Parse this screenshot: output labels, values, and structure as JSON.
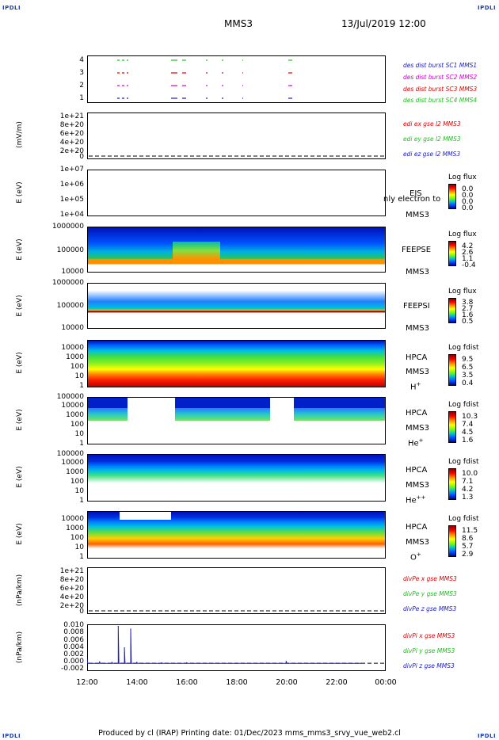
{
  "corners": {
    "tl": "IPDLI",
    "tr": "IPDLI",
    "bl": "IPDLI",
    "br": "IPDLI"
  },
  "header": {
    "title": "MMS3",
    "datetime": "13/Jul/2019 12:00"
  },
  "panels": {
    "burst": {
      "yticks": [
        "4",
        "3",
        "2",
        "1"
      ],
      "legend": [
        "des dist burst SC1 MMS1",
        "des dist burst SC2 MMS2",
        "des dist burst SC3 MMS3",
        "des dist burst SC4 MMS4"
      ],
      "colors": [
        "#1c1cc8",
        "#d400d4",
        "#e00000",
        "#20c020"
      ]
    },
    "edi": {
      "ylabel": "(mV/m)",
      "yticks": [
        "1e+21",
        "8e+20",
        "6e+20",
        "4e+20",
        "2e+20",
        "0"
      ],
      "legend": [
        "edi ex gse l2 MMS3",
        "edi ey gse l2 MMS3",
        "edi ez gse l2 MMS3"
      ],
      "colors": [
        "#e00000",
        "#20c020",
        "#1c1cc8"
      ]
    },
    "eis": {
      "ylabel": "E (eV)",
      "yticks": [
        "1e+07",
        "1e+06",
        "1e+05",
        "1e+04"
      ],
      "name": "EIS",
      "sc": "MMS3",
      "overlay": "nly electron to",
      "cbtitle": "Log flux",
      "cbvals": [
        "0.0",
        "0.0",
        "0.0",
        "0.0"
      ]
    },
    "feepse": {
      "ylabel": "E (eV)",
      "yticks": [
        "1000000",
        "100000",
        "10000"
      ],
      "name": "FEEPSE",
      "sc": "MMS3",
      "cbtitle": "Log flux",
      "cbvals": [
        "4.2",
        "2.6",
        "1.1",
        "-0.4"
      ]
    },
    "feepsi": {
      "ylabel": "E (eV)",
      "yticks": [
        "1000000",
        "100000",
        "10000"
      ],
      "name": "FEEPSI",
      "sc": "MMS3",
      "cbtitle": "Log flux",
      "cbvals": [
        "3.8",
        "2.7",
        "1.6",
        "0.5"
      ]
    },
    "hpca_h": {
      "ylabel": "E (eV)",
      "yticks": [
        "10000",
        "1000",
        "100",
        "10",
        "1"
      ],
      "name": "HPCA",
      "sc": "MMS3",
      "species": "H",
      "charge": "+",
      "cbtitle": "Log fdist",
      "cbvals": [
        "9.5",
        "6.5",
        "3.5",
        "0.4"
      ]
    },
    "hpca_he": {
      "ylabel": "E (eV)",
      "yticks": [
        "100000",
        "10000",
        "1000",
        "100",
        "10",
        "1"
      ],
      "name": "HPCA",
      "sc": "MMS3",
      "species": "He",
      "charge": "+",
      "cbtitle": "Log fdist",
      "cbvals": [
        "10.3",
        "7.4",
        "4.5",
        "1.6"
      ]
    },
    "hpca_he2": {
      "ylabel": "E (eV)",
      "yticks": [
        "100000",
        "10000",
        "1000",
        "100",
        "10",
        "1"
      ],
      "name": "HPCA",
      "sc": "MMS3",
      "species": "He",
      "charge": "++",
      "cbtitle": "Log fdist",
      "cbvals": [
        "10.0",
        "7.1",
        "4.2",
        "1.3"
      ]
    },
    "hpca_o": {
      "ylabel": "E (eV)",
      "yticks": [
        "10000",
        "1000",
        "100",
        "10",
        "1"
      ],
      "name": "HPCA",
      "sc": "MMS3",
      "species": "O",
      "charge": "+",
      "cbtitle": "Log fdist",
      "cbvals": [
        "11.5",
        "8.6",
        "5.7",
        "2.9"
      ]
    },
    "divpe": {
      "ylabel": "(nPa/km)",
      "yticks": [
        "1e+21",
        "8e+20",
        "6e+20",
        "4e+20",
        "2e+20",
        "0"
      ],
      "legend": [
        "divPe x gse MMS3",
        "divPe y gse MMS3",
        "divPe z gse MMS3"
      ],
      "colors": [
        "#e00000",
        "#20c020",
        "#1c1cc8"
      ]
    },
    "divpi": {
      "ylabel": "(nPa/km)",
      "yticks": [
        "0.010",
        "0.008",
        "0.006",
        "0.004",
        "0.002",
        "0.000",
        "-0.002"
      ],
      "legend": [
        "divPi x gse MMS3",
        "divPi y gse MMS3",
        "divPi z gse MMS3"
      ],
      "colors": [
        "#e00000",
        "#20c020",
        "#1c1cc8"
      ]
    }
  },
  "xaxis": {
    "ticks": [
      "12:00",
      "14:00",
      "16:00",
      "18:00",
      "20:00",
      "22:00",
      "00:00"
    ]
  },
  "footer": "Produced by cl (IRAP)   Printing date: 01/Dec/2023   mms_mms3_srvy_vue_web2.cl",
  "chart_data": {
    "type": "line",
    "title": "MMS3",
    "x_range": [
      "12:00",
      "00:00"
    ],
    "x": [
      "12:00",
      "12:30",
      "13:00",
      "13:15",
      "13:30",
      "13:45",
      "14:00",
      "15:00",
      "16:00",
      "18:00",
      "20:00",
      "22:00",
      "23:00"
    ],
    "series": [
      {
        "name": "divPi z gse MMS3",
        "values": [
          0.001,
          0.0004,
          0.0002,
          0.0095,
          0.004,
          0.0088,
          0.0002,
          0.0001,
          0.0001,
          0.0,
          0.0005,
          0.0,
          0.0
        ]
      }
    ],
    "ylim": [
      -0.002,
      0.01
    ]
  }
}
